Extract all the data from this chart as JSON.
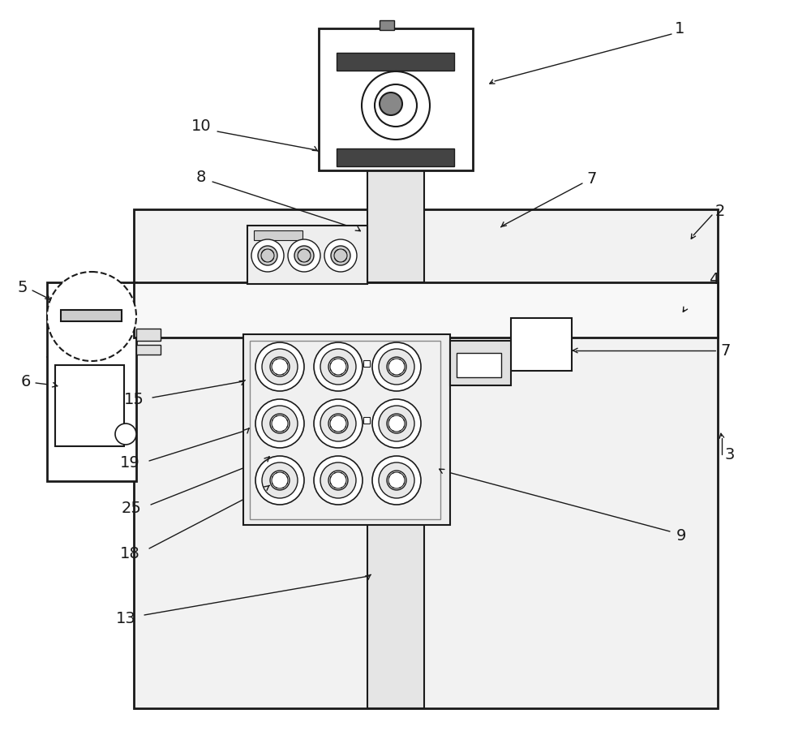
{
  "bg_color": "#ffffff",
  "line_color": "#1a1a1a",
  "fig_width": 10.0,
  "fig_height": 9.17
}
